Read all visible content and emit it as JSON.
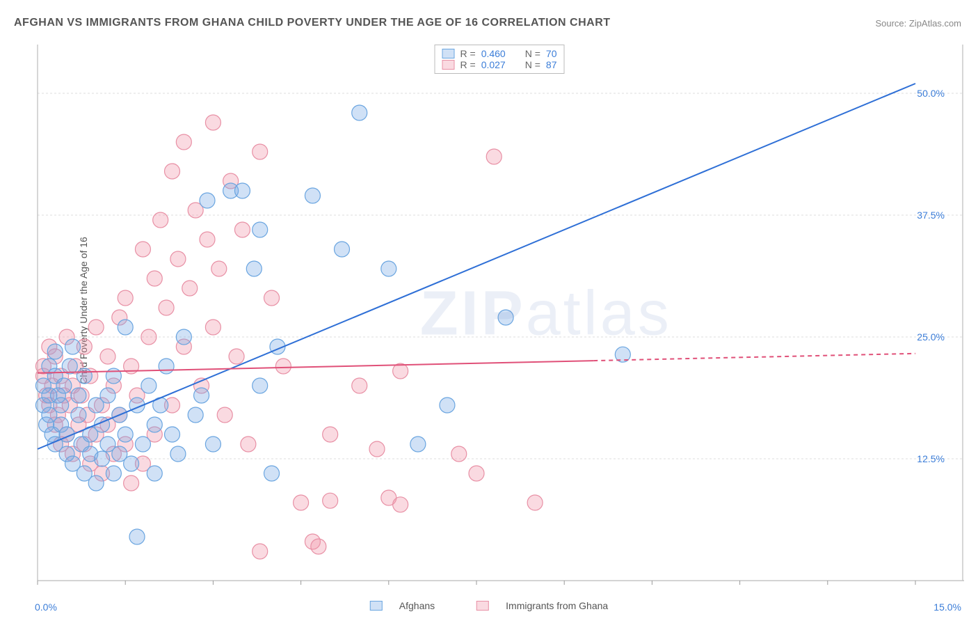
{
  "title": "AFGHAN VS IMMIGRANTS FROM GHANA CHILD POVERTY UNDER THE AGE OF 16 CORRELATION CHART",
  "source": "Source: ZipAtlas.com",
  "watermark_zip": "ZIP",
  "watermark_atlas": "atlas",
  "y_axis_label": "Child Poverty Under the Age of 16",
  "chart": {
    "type": "scatter",
    "background_color": "#ffffff",
    "grid_color": "#dddddd",
    "axis_color": "#bbbbbb",
    "tick_color": "#999999",
    "xlim": [
      0,
      15
    ],
    "ylim": [
      0,
      55
    ],
    "x_tick_step": 1.5,
    "y_ticks": [
      12.5,
      25.0,
      37.5,
      50.0
    ],
    "y_tick_labels": [
      "12.5%",
      "25.0%",
      "37.5%",
      "50.0%"
    ],
    "x_start_label": "0.0%",
    "x_end_label": "15.0%",
    "marker_radius": 11,
    "marker_stroke_width": 1.2,
    "trend_line_width": 2
  },
  "series": {
    "afghans": {
      "label": "Afghans",
      "fill_color": "rgba(120,170,230,0.35)",
      "stroke_color": "#6aa5e0",
      "line_color": "#2e6fd6",
      "R": "0.460",
      "N": "70",
      "trend": {
        "x1": 0,
        "y1": 13.5,
        "x2": 15,
        "y2": 51.0,
        "dash_from_x": null
      },
      "points": [
        [
          0.1,
          18
        ],
        [
          0.1,
          20
        ],
        [
          0.15,
          16
        ],
        [
          0.2,
          22
        ],
        [
          0.2,
          19
        ],
        [
          0.2,
          17
        ],
        [
          0.25,
          15
        ],
        [
          0.3,
          21
        ],
        [
          0.3,
          23.5
        ],
        [
          0.3,
          14
        ],
        [
          0.35,
          19
        ],
        [
          0.4,
          16
        ],
        [
          0.4,
          18
        ],
        [
          0.45,
          20
        ],
        [
          0.5,
          13
        ],
        [
          0.5,
          15
        ],
        [
          0.55,
          22
        ],
        [
          0.6,
          24
        ],
        [
          0.6,
          12
        ],
        [
          0.7,
          17
        ],
        [
          0.7,
          19
        ],
        [
          0.75,
          14
        ],
        [
          0.8,
          21
        ],
        [
          0.8,
          11
        ],
        [
          0.9,
          13
        ],
        [
          0.9,
          15
        ],
        [
          1.0,
          18
        ],
        [
          1.0,
          10
        ],
        [
          1.1,
          16
        ],
        [
          1.1,
          12.5
        ],
        [
          1.2,
          19
        ],
        [
          1.2,
          14
        ],
        [
          1.3,
          21
        ],
        [
          1.3,
          11
        ],
        [
          1.4,
          17
        ],
        [
          1.4,
          13
        ],
        [
          1.5,
          26
        ],
        [
          1.5,
          15
        ],
        [
          1.6,
          12
        ],
        [
          1.7,
          18
        ],
        [
          1.7,
          4.5
        ],
        [
          1.8,
          14
        ],
        [
          1.9,
          20
        ],
        [
          2.0,
          16
        ],
        [
          2.0,
          11
        ],
        [
          2.1,
          18
        ],
        [
          2.2,
          22
        ],
        [
          2.3,
          15
        ],
        [
          2.4,
          13
        ],
        [
          2.5,
          25
        ],
        [
          2.7,
          17
        ],
        [
          2.8,
          19
        ],
        [
          2.9,
          39
        ],
        [
          3.0,
          14
        ],
        [
          3.3,
          40
        ],
        [
          3.5,
          40
        ],
        [
          3.7,
          32
        ],
        [
          3.8,
          36
        ],
        [
          3.8,
          20
        ],
        [
          4.0,
          11
        ],
        [
          4.1,
          24
        ],
        [
          4.7,
          39.5
        ],
        [
          5.2,
          34
        ],
        [
          5.5,
          48
        ],
        [
          6.0,
          32
        ],
        [
          6.5,
          14
        ],
        [
          7.0,
          18
        ],
        [
          8.0,
          27
        ],
        [
          10.0,
          23.2
        ]
      ]
    },
    "ghana": {
      "label": "Immigrants from Ghana",
      "fill_color": "rgba(240,150,170,0.35)",
      "stroke_color": "#e890a5",
      "line_color": "#e05078",
      "R": "0.027",
      "N": "87",
      "trend": {
        "x1": 0,
        "y1": 21.3,
        "x2": 15,
        "y2": 23.3,
        "dash_from_x": 9.5
      },
      "points": [
        [
          0.1,
          21
        ],
        [
          0.1,
          22
        ],
        [
          0.15,
          19
        ],
        [
          0.2,
          24
        ],
        [
          0.2,
          18
        ],
        [
          0.25,
          20
        ],
        [
          0.3,
          16
        ],
        [
          0.3,
          23
        ],
        [
          0.35,
          17
        ],
        [
          0.4,
          21
        ],
        [
          0.4,
          14
        ],
        [
          0.45,
          19
        ],
        [
          0.5,
          15
        ],
        [
          0.5,
          25
        ],
        [
          0.55,
          18
        ],
        [
          0.6,
          20
        ],
        [
          0.6,
          13
        ],
        [
          0.65,
          22
        ],
        [
          0.7,
          16
        ],
        [
          0.75,
          19
        ],
        [
          0.8,
          14
        ],
        [
          0.8,
          24
        ],
        [
          0.85,
          17
        ],
        [
          0.9,
          12
        ],
        [
          0.9,
          21
        ],
        [
          1.0,
          15
        ],
        [
          1.0,
          26
        ],
        [
          1.1,
          18
        ],
        [
          1.1,
          11
        ],
        [
          1.2,
          23
        ],
        [
          1.2,
          16
        ],
        [
          1.3,
          20
        ],
        [
          1.3,
          13
        ],
        [
          1.4,
          27
        ],
        [
          1.4,
          17
        ],
        [
          1.5,
          14
        ],
        [
          1.5,
          29
        ],
        [
          1.6,
          22
        ],
        [
          1.6,
          10
        ],
        [
          1.7,
          19
        ],
        [
          1.8,
          34
        ],
        [
          1.8,
          12
        ],
        [
          1.9,
          25
        ],
        [
          2.0,
          31
        ],
        [
          2.0,
          15
        ],
        [
          2.1,
          37
        ],
        [
          2.2,
          28
        ],
        [
          2.3,
          18
        ],
        [
          2.3,
          42
        ],
        [
          2.4,
          33
        ],
        [
          2.5,
          24
        ],
        [
          2.5,
          45
        ],
        [
          2.6,
          30
        ],
        [
          2.7,
          38
        ],
        [
          2.8,
          20
        ],
        [
          2.9,
          35
        ],
        [
          3.0,
          26
        ],
        [
          3.0,
          47
        ],
        [
          3.1,
          32
        ],
        [
          3.2,
          17
        ],
        [
          3.3,
          41
        ],
        [
          3.4,
          23
        ],
        [
          3.5,
          36
        ],
        [
          3.6,
          14
        ],
        [
          3.8,
          44
        ],
        [
          3.8,
          3.0
        ],
        [
          4.0,
          29
        ],
        [
          4.2,
          22
        ],
        [
          4.5,
          8
        ],
        [
          4.7,
          4
        ],
        [
          4.8,
          3.5
        ],
        [
          5.0,
          15
        ],
        [
          5.0,
          8.2
        ],
        [
          5.5,
          20
        ],
        [
          5.8,
          13.5
        ],
        [
          6.0,
          8.5
        ],
        [
          6.2,
          21.5
        ],
        [
          6.2,
          7.8
        ],
        [
          7.2,
          13
        ],
        [
          7.5,
          11
        ],
        [
          7.8,
          43.5
        ],
        [
          8.5,
          8
        ]
      ]
    }
  },
  "legend_top": {
    "R_label": "R =",
    "N_label": "N ="
  },
  "legend_bottom": {
    "s1": "Afghans",
    "s2": "Immigrants from Ghana"
  }
}
